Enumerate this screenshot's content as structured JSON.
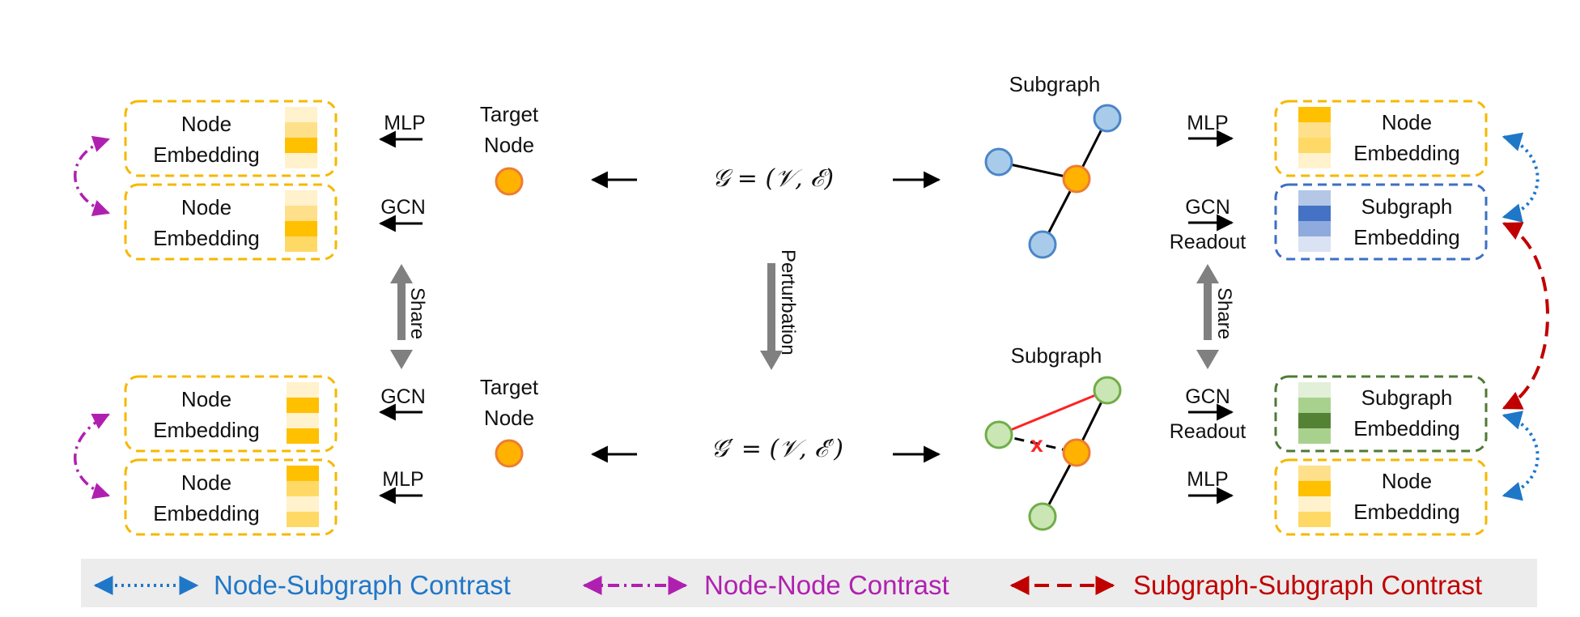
{
  "colors": {
    "yellow_border": "#f5b800",
    "blue_border": "#3c6fc4",
    "green_border": "#4e7a35",
    "orange_node": "#ffb300",
    "blue_node": "#a9cbea",
    "green_node": "#c9e6b4",
    "node_subgraph": "#1f77c8",
    "node_node": "#b020b0",
    "subgraph_subgraph": "#c00000",
    "share_arrow": "#808080",
    "legend_bg": "#ececec"
  },
  "left": {
    "boxes": [
      {
        "label_1": "Node",
        "label_2": "Embedding",
        "op": "MLP"
      },
      {
        "label_1": "Node",
        "label_2": "Embedding",
        "op": "GCN"
      },
      {
        "label_1": "Node",
        "label_2": "Embedding",
        "op": "GCN"
      },
      {
        "label_1": "Node",
        "label_2": "Embedding",
        "op": "MLP"
      }
    ],
    "share": "Share"
  },
  "target": {
    "top_1": "Target",
    "top_2": "Node",
    "bottom_1": "Target",
    "bottom_2": "Node"
  },
  "center": {
    "graph_top": "𝒢 = (𝒱, ℰ)",
    "graph_bottom": "𝒢′ = (𝒱, ℰ′)",
    "perturbation": "Perturbation"
  },
  "subgraph": {
    "top_title": "Subgraph",
    "bottom_title": "Subgraph",
    "removed_edge_mark": "x"
  },
  "right": {
    "ops": [
      {
        "line_1": "MLP",
        "line_2": ""
      },
      {
        "line_1": "GCN",
        "line_2": "Readout"
      },
      {
        "line_1": "GCN",
        "line_2": "Readout"
      },
      {
        "line_1": "MLP",
        "line_2": ""
      }
    ],
    "boxes": [
      {
        "label_1": "Node",
        "label_2": "Embedding"
      },
      {
        "label_1": "Subgraph",
        "label_2": "Embedding"
      },
      {
        "label_1": "Subgraph",
        "label_2": "Embedding"
      },
      {
        "label_1": "Node",
        "label_2": "Embedding"
      }
    ],
    "share": "Share"
  },
  "legend": {
    "node_subgraph": "Node-Subgraph Contrast",
    "node_node": "Node-Node Contrast",
    "subgraph_subgraph": "Subgraph-Subgraph Contrast"
  }
}
